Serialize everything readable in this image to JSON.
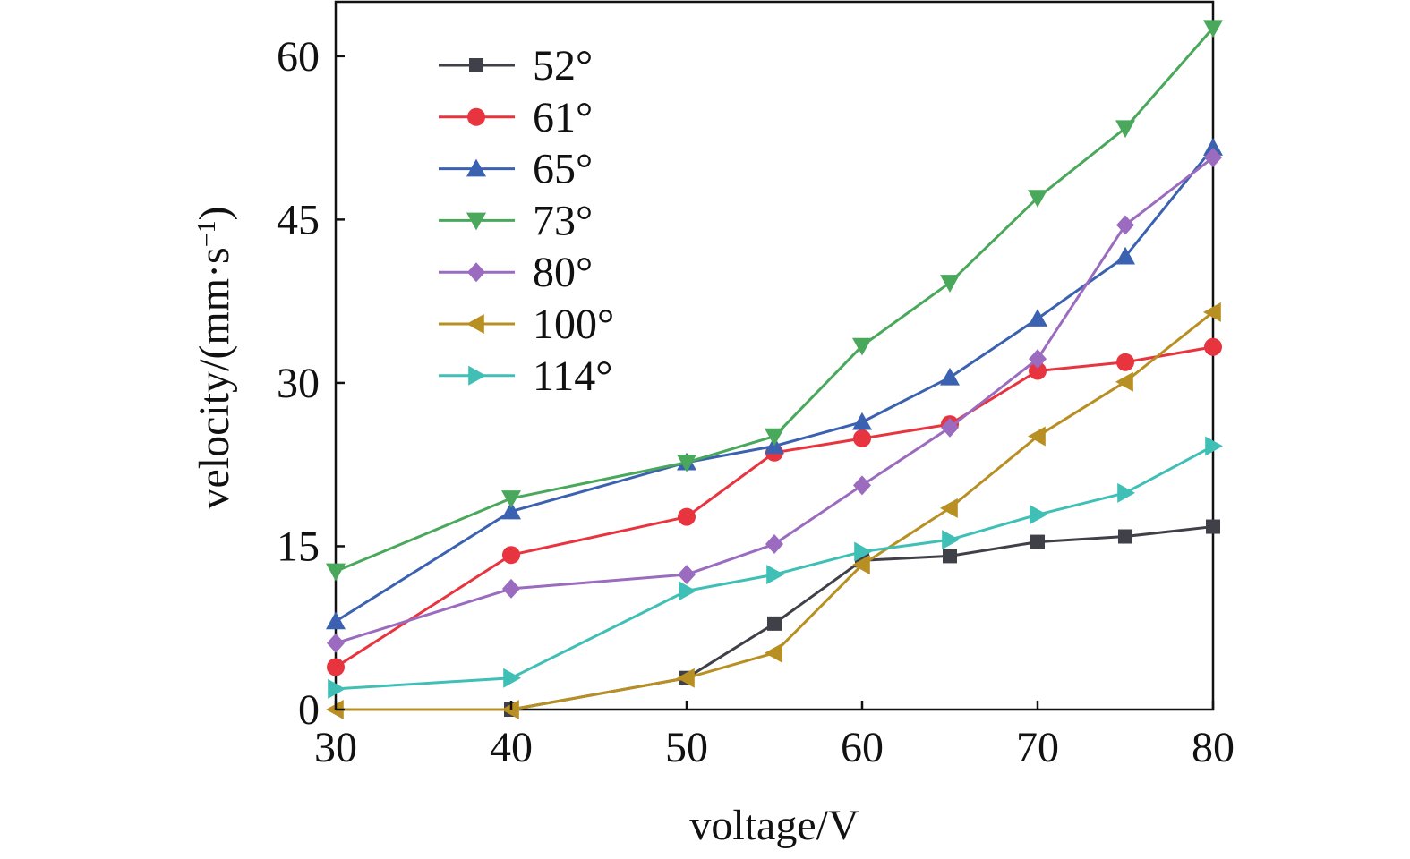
{
  "chart_data": {
    "type": "line",
    "title": "",
    "xlabel": "voltage/V",
    "ylabel_main": "velocity/(mm·s",
    "ylabel_sup": "−1",
    "ylabel_close": ")",
    "xlim": [
      30,
      80
    ],
    "ylim": [
      0,
      65
    ],
    "xticks": [
      30,
      40,
      50,
      60,
      70,
      80
    ],
    "yticks": [
      0,
      15,
      30,
      45,
      60
    ],
    "grid": false,
    "legend_position": "top-left",
    "series": [
      {
        "name": "52°",
        "color": "#404048",
        "marker": "square",
        "x": [
          40,
          50,
          55,
          60,
          65,
          70,
          75,
          80
        ],
        "y": [
          0,
          2.9,
          7.9,
          13.7,
          14.1,
          15.4,
          15.9,
          16.8
        ]
      },
      {
        "name": "61°",
        "color": "#e8343f",
        "marker": "circle",
        "x": [
          30,
          40,
          50,
          55,
          60,
          65,
          70,
          75,
          80
        ],
        "y": [
          3.9,
          14.2,
          17.7,
          23.6,
          24.9,
          26.2,
          31.1,
          31.9,
          33.3
        ]
      },
      {
        "name": "65°",
        "color": "#3a62b0",
        "marker": "triangle-up",
        "x": [
          30,
          40,
          50,
          55,
          60,
          65,
          70,
          75,
          80
        ],
        "y": [
          8.1,
          18.2,
          22.7,
          24.2,
          26.4,
          30.5,
          35.9,
          41.6,
          51.6
        ]
      },
      {
        "name": "73°",
        "color": "#4aa85c",
        "marker": "triangle-down",
        "x": [
          30,
          40,
          50,
          55,
          60,
          65,
          70,
          75,
          80
        ],
        "y": [
          12.7,
          19.4,
          22.7,
          25.1,
          33.4,
          39.2,
          47.0,
          53.4,
          62.6
        ]
      },
      {
        "name": "80°",
        "color": "#9a6bbf",
        "marker": "diamond",
        "x": [
          30,
          40,
          50,
          55,
          60,
          65,
          70,
          75,
          80
        ],
        "y": [
          6.1,
          11.1,
          12.4,
          15.2,
          20.6,
          25.9,
          32.2,
          44.5,
          50.7
        ]
      },
      {
        "name": "100°",
        "color": "#b88f22",
        "marker": "triangle-left",
        "x": [
          30,
          40,
          50,
          55,
          60,
          65,
          70,
          75,
          80
        ],
        "y": [
          0,
          0,
          2.9,
          5.2,
          13.3,
          18.5,
          25.1,
          30.1,
          36.5
        ]
      },
      {
        "name": "114°",
        "color": "#3fbfb6",
        "marker": "triangle-right",
        "x": [
          30,
          40,
          50,
          55,
          60,
          65,
          70,
          75,
          80
        ],
        "y": [
          1.9,
          2.9,
          10.9,
          12.4,
          14.5,
          15.6,
          17.9,
          19.9,
          24.2
        ]
      }
    ]
  }
}
